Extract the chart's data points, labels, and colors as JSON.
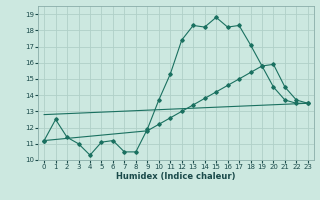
{
  "xlabel": "Humidex (Indice chaleur)",
  "xlim": [
    -0.5,
    23.5
  ],
  "ylim": [
    10,
    19.5
  ],
  "yticks": [
    10,
    11,
    12,
    13,
    14,
    15,
    16,
    17,
    18,
    19
  ],
  "xticks": [
    0,
    1,
    2,
    3,
    4,
    5,
    6,
    7,
    8,
    9,
    10,
    11,
    12,
    13,
    14,
    15,
    16,
    17,
    18,
    19,
    20,
    21,
    22,
    23
  ],
  "bg_color": "#cce8e0",
  "grid_color": "#b0d0c8",
  "line_color": "#1a7060",
  "line1_x": [
    0,
    1,
    2,
    3,
    4,
    5,
    6,
    7,
    8,
    9,
    10,
    11,
    12,
    13,
    14,
    15,
    16,
    17,
    18,
    19,
    20,
    21,
    22,
    23
  ],
  "line1_y": [
    11.2,
    12.5,
    11.4,
    11.0,
    10.3,
    11.1,
    11.2,
    10.5,
    10.5,
    11.9,
    13.7,
    15.3,
    17.4,
    18.3,
    18.2,
    18.8,
    18.2,
    18.3,
    17.1,
    15.8,
    14.5,
    13.7,
    13.5,
    13.5
  ],
  "line2_x": [
    0,
    23
  ],
  "line2_y": [
    12.8,
    13.5
  ],
  "line3_x": [
    0,
    9,
    10,
    11,
    12,
    13,
    14,
    15,
    16,
    17,
    18,
    19,
    20,
    21,
    22,
    23
  ],
  "line3_y": [
    11.2,
    11.8,
    12.2,
    12.6,
    13.0,
    13.4,
    13.8,
    14.2,
    14.6,
    15.0,
    15.4,
    15.8,
    15.9,
    14.5,
    13.7,
    13.5
  ]
}
